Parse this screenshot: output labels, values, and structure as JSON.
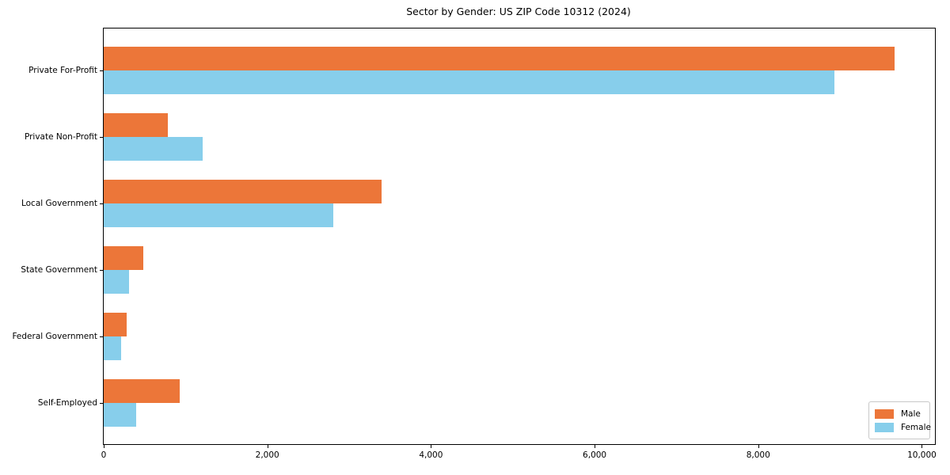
{
  "chart_data": {
    "type": "bar",
    "orientation": "horizontal",
    "title": "Sector by Gender: US ZIP Code 10312 (2024)",
    "categories": [
      "Private For-Profit",
      "Private Non-Profit",
      "Local Government",
      "State Government",
      "Federal Government",
      "Self-Employed"
    ],
    "series": [
      {
        "name": "Male",
        "color": "#ec7639",
        "values": [
          9670,
          780,
          3400,
          480,
          280,
          930
        ]
      },
      {
        "name": "Female",
        "color": "#87ceeb",
        "values": [
          8930,
          1210,
          2810,
          310,
          210,
          400
        ]
      }
    ],
    "xlabel": "",
    "ylabel": "",
    "xlim": [
      0,
      10160
    ],
    "x_ticks": [
      0,
      2000,
      4000,
      6000,
      8000,
      10000
    ],
    "x_tick_labels": [
      "0",
      "2,000",
      "4,000",
      "6,000",
      "8,000",
      "10,000"
    ],
    "grid": false,
    "legend": {
      "position": "lower right",
      "entries": [
        "Male",
        "Female"
      ]
    }
  },
  "colors": {
    "male": "#ec7639",
    "female": "#87ceeb",
    "axis": "#000000",
    "background": "#ffffff",
    "legend_border": "#c8c8c8"
  }
}
